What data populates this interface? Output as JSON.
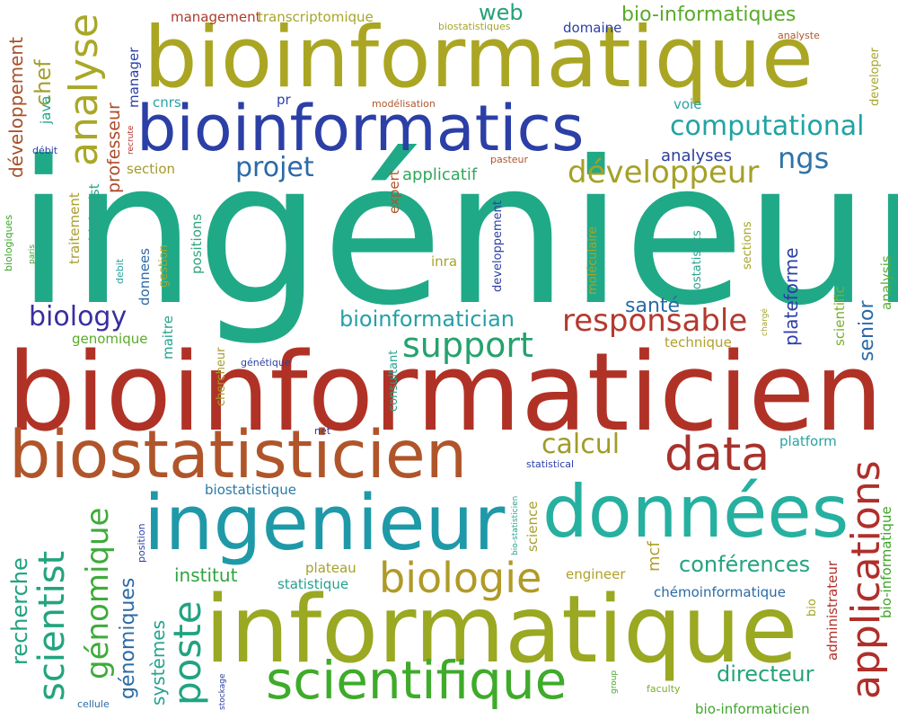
{
  "words": [
    {
      "text": "ingénieur",
      "color": "#20a987"
    },
    {
      "text": "bioinformaticien",
      "color": "#b03226"
    },
    {
      "text": "bioinformatique",
      "color": "#aaa623"
    },
    {
      "text": "informatique",
      "color": "#9aa822"
    },
    {
      "text": "bioinformatics",
      "color": "#2b3fa6"
    },
    {
      "text": "ingenieur",
      "color": "#1f99a8"
    },
    {
      "text": "données",
      "color": "#26b0a0"
    },
    {
      "text": "biostatisticien",
      "color": "#b0552a"
    },
    {
      "text": "scientifique",
      "color": "#3eab2a"
    },
    {
      "text": "data",
      "color": "#a8322c"
    },
    {
      "text": "biologie",
      "color": "#b09a28"
    },
    {
      "text": "applications",
      "color": "#b02f2a"
    },
    {
      "text": "analyse",
      "color": "#a9a827"
    },
    {
      "text": "développeur",
      "color": "#a6a028"
    },
    {
      "text": "computational",
      "color": "#20a3a3"
    },
    {
      "text": "responsable",
      "color": "#b33a2f"
    },
    {
      "text": "support",
      "color": "#24a26e"
    },
    {
      "text": "poste",
      "color": "#21a382"
    },
    {
      "text": "scientist",
      "color": "#22a47e"
    },
    {
      "text": "génomique",
      "color": "#3eab3a"
    },
    {
      "text": "projet",
      "color": "#2b6aa8"
    },
    {
      "text": "biology",
      "color": "#3a2ea0"
    },
    {
      "text": "calcul",
      "color": "#a09c2a"
    },
    {
      "text": "ngs",
      "color": "#2f74a8"
    },
    {
      "text": "conférences",
      "color": "#24a37f"
    },
    {
      "text": "bioinformatician",
      "color": "#25a0a8"
    },
    {
      "text": "recherche",
      "color": "#20a27f"
    },
    {
      "text": "génomiques",
      "color": "#2a6aa6"
    },
    {
      "text": "systèmes",
      "color": "#26a38f"
    },
    {
      "text": "directeur",
      "color": "#25a37a"
    },
    {
      "text": "chef",
      "color": "#a4a030"
    },
    {
      "text": "développement",
      "color": "#a84f28"
    },
    {
      "text": "bio-informatiques",
      "color": "#5aaa2a"
    },
    {
      "text": "professeur",
      "color": "#ae4a28"
    },
    {
      "text": "plateforme",
      "color": "#2b3fa6"
    },
    {
      "text": "senior",
      "color": "#2a6aa6"
    },
    {
      "text": "santé",
      "color": "#2a6aa6"
    },
    {
      "text": "web",
      "color": "#25a07b"
    },
    {
      "text": "institut",
      "color": "#2fa43f"
    },
    {
      "text": "mcf",
      "color": "#b0a02a"
    },
    {
      "text": "administrateur",
      "color": "#b0302a"
    },
    {
      "text": "bio-informatique",
      "color": "#3fa52a"
    },
    {
      "text": "analyses",
      "color": "#2b3f9e"
    },
    {
      "text": "scientific",
      "color": "#7ab02a"
    },
    {
      "text": "analysis",
      "color": "#5aab38"
    },
    {
      "text": "manager",
      "color": "#2b3fa6"
    },
    {
      "text": "biologist",
      "color": "#2aa386"
    },
    {
      "text": "traitement",
      "color": "#ab9f2a"
    },
    {
      "text": "java",
      "color": "#25a38a"
    },
    {
      "text": "applicatif",
      "color": "#30a65a"
    },
    {
      "text": "expert",
      "color": "#b0562a"
    },
    {
      "text": "positions",
      "color": "#30a57a"
    },
    {
      "text": "donnees",
      "color": "#2a6aa6"
    },
    {
      "text": "maitre",
      "color": "#27a38f"
    },
    {
      "text": "management",
      "color": "#ae3a2a"
    },
    {
      "text": "transcriptomique",
      "color": "#a6a52a"
    },
    {
      "text": "domaine",
      "color": "#2b3fa6"
    },
    {
      "text": "section",
      "color": "#a69a2a"
    },
    {
      "text": "cnrs",
      "color": "#27a3a0"
    },
    {
      "text": "voie",
      "color": "#2aa3a3"
    },
    {
      "text": "developpement",
      "color": "#2b3fa6"
    },
    {
      "text": "plateau",
      "color": "#a6a02a"
    },
    {
      "text": "statistique",
      "color": "#25a08f"
    },
    {
      "text": "biostatistique",
      "color": "#2a7aa6"
    },
    {
      "text": "chémoinformatique",
      "color": "#2a6aa6"
    },
    {
      "text": "platform",
      "color": "#27a3a3"
    },
    {
      "text": "engineer",
      "color": "#b0a02a"
    },
    {
      "text": "bio-informaticien",
      "color": "#3fa52a"
    },
    {
      "text": "science",
      "color": "#a8a02a"
    },
    {
      "text": "inra",
      "color": "#a6a52a"
    },
    {
      "text": "technique",
      "color": "#b0a02a"
    },
    {
      "text": "consultant",
      "color": "#26a38f"
    },
    {
      "text": "chercheur",
      "color": "#a69a2a"
    },
    {
      "text": "genomique",
      "color": "#5aaa2a"
    },
    {
      "text": "biostatistics",
      "color": "#27a38f"
    },
    {
      "text": "sections",
      "color": "#a6a52a"
    },
    {
      "text": "moléculaire",
      "color": "#a6a52a"
    },
    {
      "text": "debit",
      "color": "#25a3a0"
    },
    {
      "text": "biologiques",
      "color": "#3fa52a"
    },
    {
      "text": "paris",
      "color": "#3fa52a"
    },
    {
      "text": "gestion",
      "color": "#a6a52a"
    },
    {
      "text": "microbienne",
      "color": "#27a38f"
    },
    {
      "text": "génétique",
      "color": "#2b3fa6"
    },
    {
      "text": "pasteur",
      "color": "#b0562a"
    },
    {
      "text": "modélisation",
      "color": "#b0562a"
    },
    {
      "text": "pr",
      "color": "#2b3fa6"
    },
    {
      "text": "recrute",
      "color": "#b0302a"
    },
    {
      "text": "débit",
      "color": "#2b3fa6"
    },
    {
      "text": "net",
      "color": "#2b3fa6"
    },
    {
      "text": "statistical",
      "color": "#2b3fa6"
    },
    {
      "text": "bio-statisticien",
      "color": "#27a38f"
    },
    {
      "text": "position",
      "color": "#2b3fa6"
    },
    {
      "text": "stockage",
      "color": "#2b3fa6"
    },
    {
      "text": "cellule",
      "color": "#2b6aa6"
    },
    {
      "text": "group",
      "color": "#3fa52a"
    },
    {
      "text": "faculty",
      "color": "#7ab02a"
    },
    {
      "text": "bio",
      "color": "#a6a52a"
    },
    {
      "text": "chargé",
      "color": "#a6a52a"
    },
    {
      "text": "biostatistiques",
      "color": "#a6a52a"
    },
    {
      "text": "analyste",
      "color": "#b0562a"
    },
    {
      "text": "developer",
      "color": "#a6a52a"
    }
  ]
}
